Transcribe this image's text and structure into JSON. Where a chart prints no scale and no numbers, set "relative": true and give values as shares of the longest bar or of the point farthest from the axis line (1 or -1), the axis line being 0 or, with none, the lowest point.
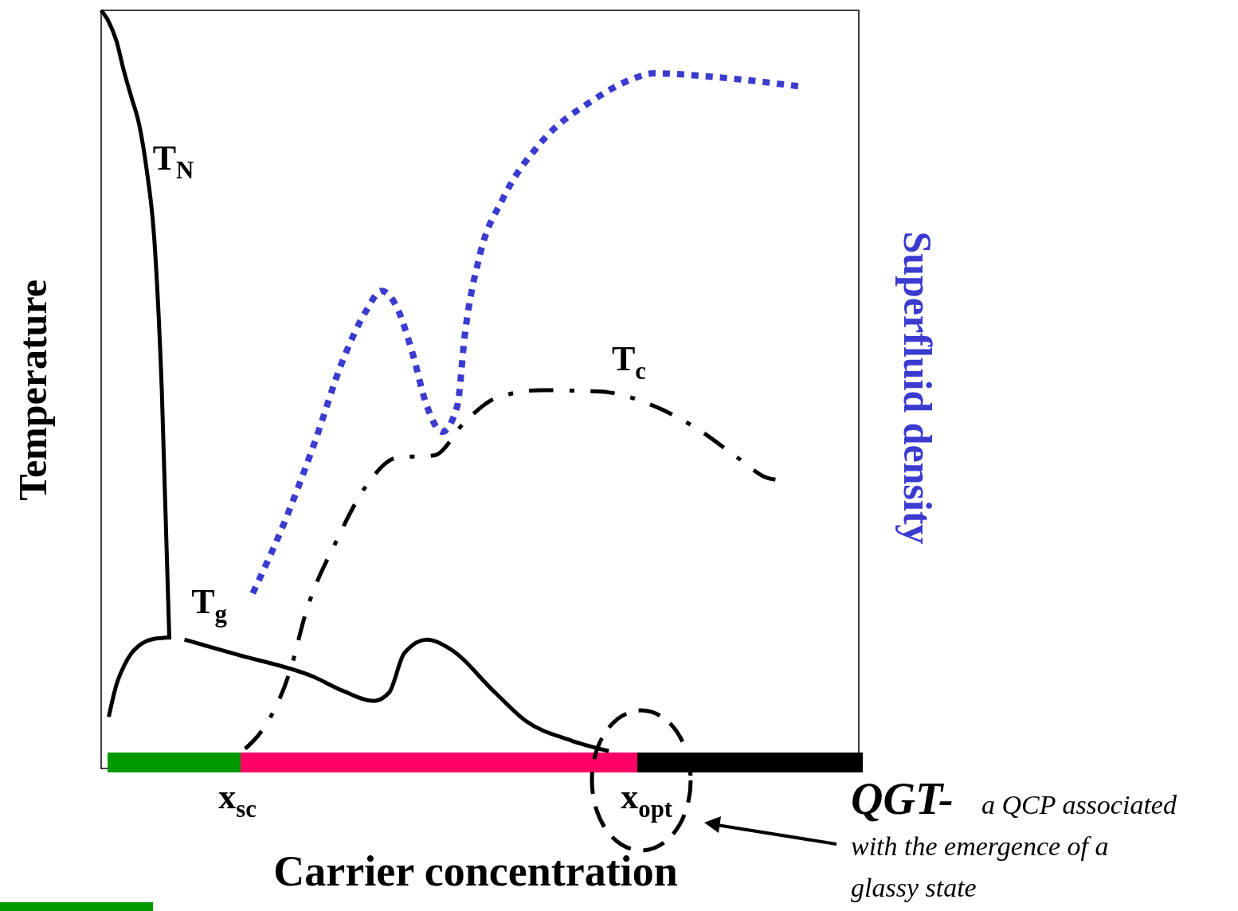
{
  "chart_data": {
    "type": "line",
    "relative": true,
    "xlabel": "Carrier concentration",
    "ylabel": "Temperature",
    "y2label": "Superfluid density",
    "marker": "none",
    "categories": [
      null,
      null,
      null,
      null,
      null,
      null,
      null,
      null,
      null,
      null,
      null,
      null,
      null,
      null,
      null,
      null,
      null,
      null,
      "x$_{sc}$",
      null,
      null,
      null,
      null,
      null,
      null,
      null,
      null,
      null,
      null,
      null,
      null,
      null,
      null,
      null,
      null,
      null,
      null,
      null,
      null,
      null,
      null,
      null,
      null,
      null,
      null,
      null,
      null,
      null,
      null,
      null,
      null,
      null,
      null,
      null,
      null,
      null,
      null,
      null,
      null,
      null,
      null,
      null,
      null,
      null,
      null,
      null,
      null,
      null,
      null,
      null,
      null,
      null,
      "x$_{opt}$",
      null,
      null,
      null,
      null,
      null,
      null,
      null,
      null,
      null,
      null,
      null,
      null,
      null,
      null,
      null,
      null,
      null,
      null,
      null,
      null,
      null,
      null,
      null,
      null,
      null,
      null,
      null,
      null
    ],
    "series": [
      {
        "name": "T$_{N}$",
        "color": "#000000",
        "line_style": "solid",
        "values": [
          1.0,
          0.985,
          0.96,
          0.92,
          0.885,
          0.85,
          0.79,
          0.7,
          0.5,
          0.17,
          null,
          null,
          null,
          null,
          null,
          null,
          null,
          null,
          null,
          null,
          null,
          null,
          null,
          null,
          null,
          null,
          null,
          null,
          null,
          null,
          null,
          null,
          null,
          null,
          null,
          null,
          null,
          null,
          null,
          null,
          null,
          null,
          null,
          null,
          null,
          null,
          null,
          null,
          null,
          null,
          null,
          null,
          null,
          null,
          null,
          null,
          null,
          null,
          null,
          null,
          null,
          null,
          null,
          null,
          null,
          null,
          null,
          null,
          null,
          null,
          null,
          null,
          null,
          null,
          null,
          null,
          null,
          null,
          null,
          null,
          null,
          null,
          null,
          null,
          null,
          null,
          null,
          null,
          null,
          null,
          null,
          null,
          null,
          null,
          null,
          null,
          null,
          null,
          null,
          null,
          null
        ]
      },
      {
        "color": "#000000",
        "line_style": "solid",
        "values": [
          null,
          0.068,
          0.11,
          0.135,
          0.152,
          0.162,
          0.168,
          0.171,
          0.172,
          0.173,
          null,
          null,
          null,
          null,
          null,
          null,
          null,
          null,
          null,
          null,
          null,
          null,
          null,
          null,
          null,
          null,
          null,
          null,
          null,
          null,
          null,
          null,
          null,
          null,
          null,
          null,
          null,
          null,
          null,
          null,
          null,
          null,
          null,
          null,
          null,
          null,
          null,
          null,
          null,
          null,
          null,
          null,
          null,
          null,
          null,
          null,
          null,
          null,
          null,
          null,
          null,
          null,
          null,
          null,
          null,
          null,
          null,
          null,
          null,
          null,
          null,
          null,
          null,
          null,
          null,
          null,
          null,
          null,
          null,
          null,
          null,
          null,
          null,
          null,
          null,
          null,
          null,
          null,
          null,
          null,
          null,
          null,
          null,
          null,
          null,
          null,
          null,
          null,
          null,
          null,
          null
        ]
      },
      {
        "name": "T$_{g}$",
        "color": "#000000",
        "line_style": "solid",
        "values": [
          null,
          null,
          null,
          null,
          null,
          null,
          null,
          null,
          null,
          null,
          null,
          0.17,
          null,
          null,
          null,
          null,
          null,
          null,
          0.15,
          null,
          null,
          null,
          null,
          null,
          null,
          null,
          null,
          null,
          0.121,
          null,
          null,
          null,
          0.102,
          null,
          null,
          null,
          0.089,
          null,
          0.1,
          null,
          0.152,
          null,
          null,
          0.17,
          null,
          null,
          0.158,
          null,
          null,
          null,
          null,
          null,
          0.1,
          null,
          null,
          null,
          0.063,
          null,
          null,
          null,
          null,
          null,
          0.037,
          null,
          null,
          null,
          null,
          0.023,
          null,
          null,
          null,
          null,
          null,
          null,
          null,
          null,
          null,
          null,
          null,
          null,
          null,
          null,
          null,
          null,
          null,
          null,
          null,
          null,
          null,
          null,
          null,
          null,
          null,
          null,
          null,
          null,
          null,
          null,
          null,
          null,
          null
        ]
      },
      {
        "name": "T$_{c}$",
        "color": "#000000",
        "line_style": "dashdot",
        "values": [
          null,
          null,
          null,
          null,
          null,
          null,
          null,
          null,
          null,
          null,
          null,
          null,
          null,
          null,
          null,
          null,
          null,
          null,
          null,
          0.026,
          null,
          0.047,
          null,
          null,
          null,
          0.131,
          null,
          0.205,
          null,
          null,
          null,
          0.299,
          null,
          null,
          null,
          0.373,
          null,
          null,
          null,
          0.41,
          null,
          null,
          null,
          null,
          0.413,
          null,
          null,
          null,
          0.457,
          null,
          null,
          null,
          0.488,
          null,
          null,
          null,
          null,
          null,
          0.499,
          null,
          null,
          null,
          null,
          null,
          null,
          null,
          0.497,
          null,
          null,
          null,
          null,
          null,
          null,
          0.478,
          null,
          null,
          null,
          null,
          null,
          0.446,
          null,
          null,
          null,
          null,
          0.41,
          null,
          null,
          null,
          0.383,
          0.381,
          null,
          null,
          null,
          null,
          null,
          null,
          null,
          null,
          null,
          null,
          null
        ]
      },
      {
        "color": "#3b3bd0",
        "line_style": "dotted",
        "axis": "y2",
        "values": [
          null,
          null,
          null,
          null,
          null,
          null,
          null,
          null,
          null,
          null,
          null,
          null,
          null,
          null,
          null,
          null,
          null,
          null,
          null,
          null,
          0.231,
          null,
          null,
          null,
          0.32,
          null,
          null,
          null,
          0.425,
          null,
          null,
          null,
          0.541,
          null,
          null,
          0.604,
          null,
          0.63,
          null,
          0.609,
          null,
          0.551,
          null,
          0.478,
          null,
          0.444,
          null,
          0.478,
          0.572,
          null,
          0.678,
          null,
          null,
          0.751,
          null,
          null,
          null,
          null,
          0.825,
          null,
          null,
          null,
          null,
          null,
          null,
          0.882,
          null,
          null,
          null,
          null,
          0.909,
          null,
          null,
          0.917,
          null,
          null,
          null,
          null,
          null,
          null,
          null,
          0.912,
          null,
          null,
          null,
          null,
          null,
          null,
          null,
          null,
          null,
          null,
          0.9,
          null,
          null,
          null,
          null,
          null,
          null,
          null,
          null
        ]
      }
    ],
    "annotations": [
      "QGT-",
      "a QCP associated with the emergence of a glassy state"
    ]
  }
}
